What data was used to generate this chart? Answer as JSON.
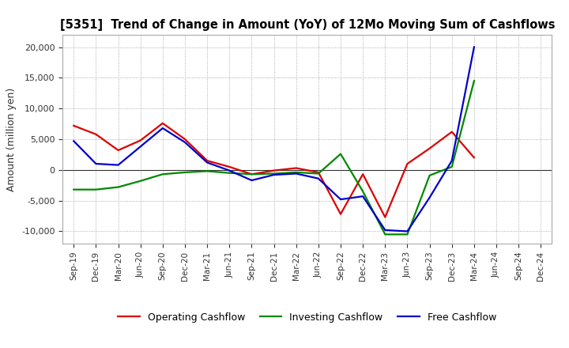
{
  "title": "[5351]  Trend of Change in Amount (YoY) of 12Mo Moving Sum of Cashflows",
  "ylabel": "Amount (million yen)",
  "x_labels": [
    "Sep-19",
    "Dec-19",
    "Mar-20",
    "Jun-20",
    "Sep-20",
    "Dec-20",
    "Mar-21",
    "Jun-21",
    "Sep-21",
    "Dec-21",
    "Mar-22",
    "Jun-22",
    "Sep-22",
    "Dec-22",
    "Mar-23",
    "Jun-23",
    "Sep-23",
    "Dec-23",
    "Mar-24",
    "Jun-24",
    "Sep-24",
    "Dec-24"
  ],
  "operating": [
    7200,
    5800,
    3200,
    4800,
    7600,
    5000,
    1500,
    500,
    -700,
    -100,
    300,
    -400,
    -7200,
    -700,
    -7700,
    1000,
    3500,
    6200,
    2000,
    null,
    null,
    null
  ],
  "investing": [
    -3200,
    -3200,
    -2800,
    -1800,
    -700,
    -400,
    -200,
    -500,
    -700,
    -600,
    -400,
    -600,
    2600,
    -3500,
    -10500,
    -10500,
    -900,
    500,
    14500,
    null,
    null,
    null
  ],
  "free": [
    4700,
    1000,
    800,
    3800,
    6800,
    4500,
    1200,
    -100,
    -1700,
    -800,
    -600,
    -1400,
    -4800,
    -4300,
    -9800,
    -10000,
    -4500,
    1500,
    20000,
    null,
    null,
    null
  ],
  "operating_color": "#dd0000",
  "investing_color": "#008800",
  "free_color": "#0000cc",
  "ylim": [
    -12000,
    22000
  ],
  "yticks": [
    -10000,
    -5000,
    0,
    5000,
    10000,
    15000,
    20000
  ],
  "background_color": "#ffffff",
  "grid_color": "#999999"
}
